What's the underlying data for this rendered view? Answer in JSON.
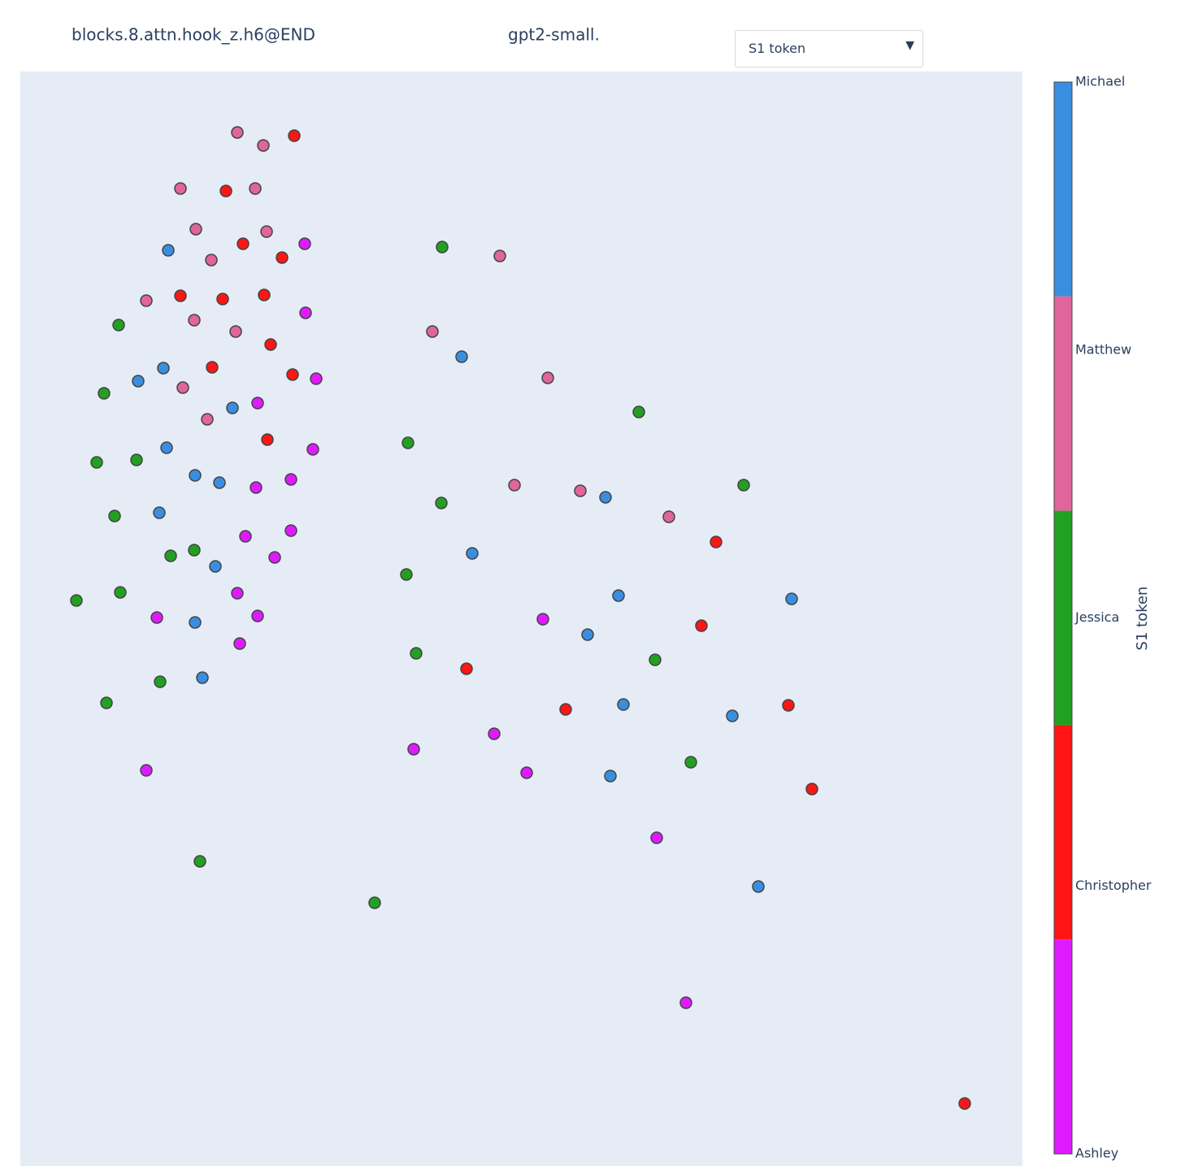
{
  "chart_data": {
    "type": "scatter",
    "title": "blocks.8.attn.hook_z.h6@END",
    "subtitle": "gpt2-small.",
    "dropdown_label": "S1 token",
    "colorbar_title": "S1 token",
    "xlim": [
      0,
      1233
    ],
    "ylim": [
      0,
      1347
    ],
    "series": [
      {
        "name": "Michael",
        "color": "#3a8ee0",
        "x": [
          182,
          176,
          145,
          261,
          180,
          215,
          245,
          171,
          240,
          215,
          224,
          543,
          720,
          556,
          736,
          949,
          698,
          742,
          876,
          726,
          908
        ],
        "y": [
          1127,
          982,
          966,
          933,
          884,
          850,
          841,
          804,
          738,
          669,
          601,
          996,
          823,
          754,
          702,
          698,
          654,
          568,
          554,
          480,
          344
        ]
      },
      {
        "name": "Matthew",
        "color": "#e0659a",
        "x": [
          267,
          299,
          197,
          289,
          216,
          303,
          235,
          155,
          214,
          265,
          200,
          230,
          590,
          507,
          649,
          608,
          689,
          798
        ],
        "y": [
          1272,
          1256,
          1203,
          1203,
          1153,
          1150,
          1115,
          1065,
          1041,
          1027,
          958,
          919,
          1120,
          1027,
          970,
          838,
          831,
          799
        ]
      },
      {
        "name": "Jessica",
        "color": "#22a022",
        "x": [
          519,
          121,
          103,
          761,
          477,
          94,
          143,
          518,
          116,
          890,
          185,
          214,
          475,
          123,
          69,
          487,
          781,
          172,
          106,
          825,
          221,
          436
        ],
        "y": [
          1131,
          1035,
          951,
          928,
          890,
          866,
          869,
          816,
          800,
          838,
          751,
          758,
          728,
          706,
          696,
          631,
          623,
          596,
          570,
          497,
          375,
          324
        ]
      },
      {
        "name": "Christopher",
        "color": "#ff1515",
        "x": [
          337,
          253,
          274,
          322,
          197,
          249,
          300,
          308,
          236,
          335,
          304,
          856,
          838,
          549,
          671,
          945,
          974,
          1162
        ],
        "y": [
          1268,
          1200,
          1135,
          1118,
          1071,
          1067,
          1072,
          1011,
          983,
          974,
          894,
          768,
          665,
          612,
          562,
          567,
          464,
          77
        ]
      },
      {
        "name": "Ashley",
        "color": "#e01aff",
        "x": [
          350,
          351,
          364,
          292,
          360,
          290,
          333,
          277,
          333,
          313,
          267,
          168,
          292,
          270,
          643,
          583,
          484,
          155,
          623,
          783,
          819
        ],
        "y": [
          1135,
          1050,
          969,
          939,
          882,
          835,
          845,
          775,
          782,
          749,
          705,
          675,
          677,
          643,
          673,
          532,
          513,
          487,
          484,
          404,
          201
        ]
      }
    ]
  }
}
